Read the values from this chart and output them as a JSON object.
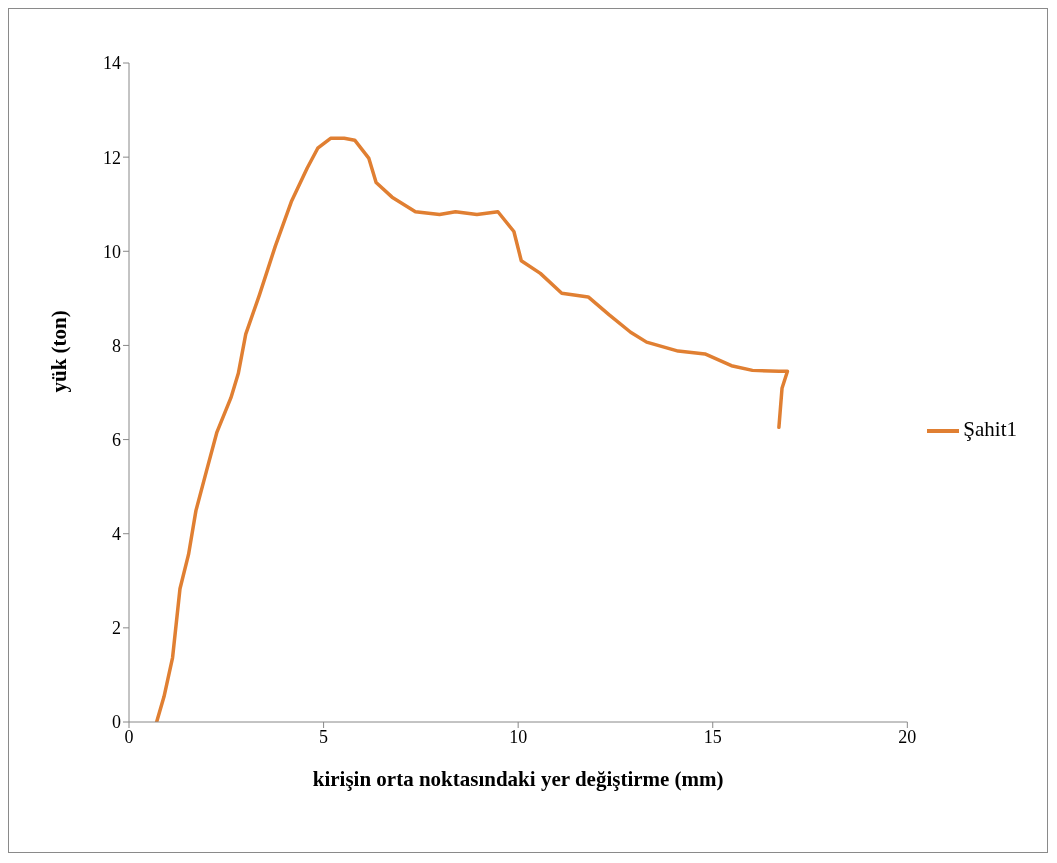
{
  "chart_data": {
    "type": "line",
    "xlabel": "kirişin orta noktasındaki yer değiştirme (mm)",
    "ylabel": "yük (ton)",
    "xlim": [
      0,
      20
    ],
    "xticks": [
      0,
      5,
      10,
      15,
      20
    ],
    "ylim": [
      0,
      14
    ],
    "yticks": [
      0,
      2,
      4,
      6,
      8,
      10,
      12,
      14
    ],
    "grid": false,
    "legend": "right",
    "marker": "none",
    "line_style": "solid",
    "series": [
      {
        "name": "Şahit1",
        "color": "#e07f32",
        "x": [
          0.71,
          0.9,
          1.12,
          1.31,
          1.53,
          1.72,
          1.99,
          2.26,
          2.62,
          2.81,
          3.0,
          3.35,
          3.76,
          4.17,
          4.58,
          4.85,
          5.18,
          5.53,
          5.8,
          6.16,
          6.35,
          6.76,
          7.36,
          7.98,
          8.39,
          8.94,
          9.48,
          9.89,
          10.08,
          10.57,
          11.12,
          11.8,
          12.34,
          12.89,
          13.3,
          14.11,
          14.8,
          15.48,
          16.02,
          16.7,
          16.92,
          16.78,
          16.7
        ],
        "values": [
          0,
          0.54,
          1.37,
          2.83,
          3.56,
          4.49,
          5.33,
          6.16,
          6.89,
          7.41,
          8.24,
          9.07,
          10.11,
          11.05,
          11.77,
          12.19,
          12.4,
          12.4,
          12.36,
          11.98,
          11.46,
          11.15,
          10.84,
          10.78,
          10.84,
          10.78,
          10.84,
          10.42,
          9.8,
          9.53,
          9.11,
          9.03,
          8.65,
          8.28,
          8.07,
          7.88,
          7.82,
          7.57,
          7.47,
          7.45,
          7.45,
          7.09,
          6.26
        ]
      }
    ]
  }
}
